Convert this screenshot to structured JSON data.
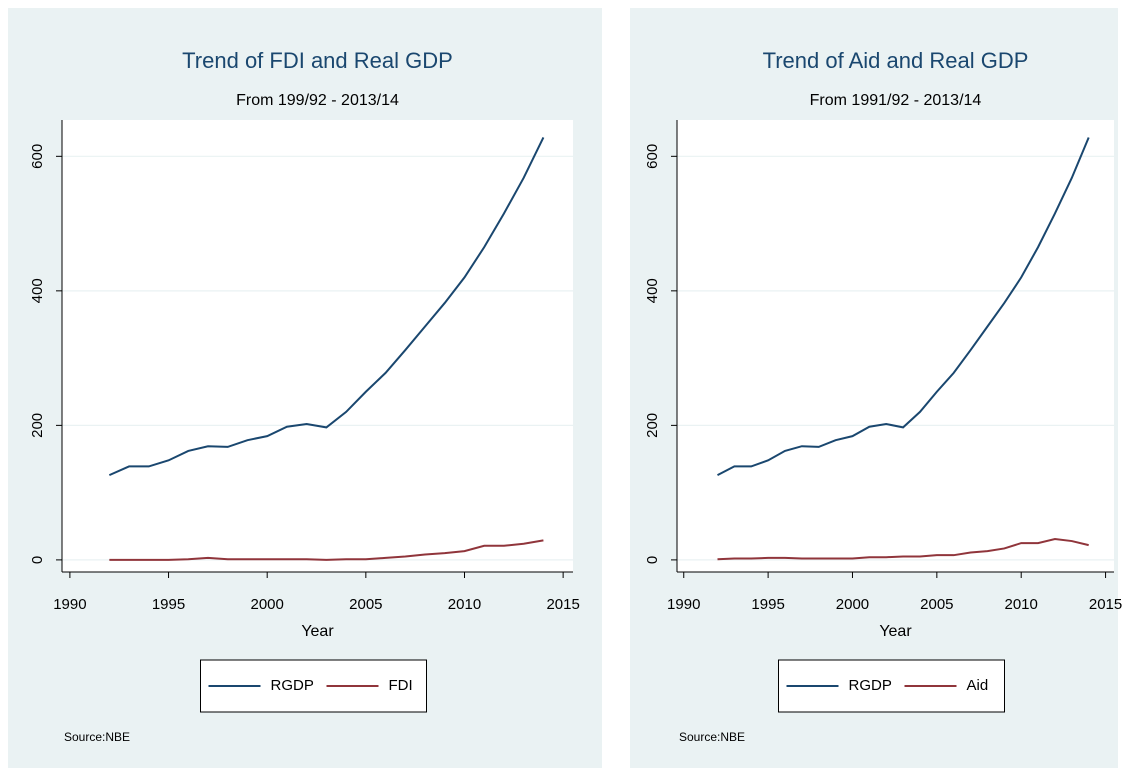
{
  "chart_data": [
    {
      "type": "line",
      "title": "Trend of FDI and Real GDP",
      "subtitle": "From 199/92 - 2013/14",
      "x_label": "Year",
      "note": "Source:NBE",
      "x": [
        1992,
        1993,
        1994,
        1995,
        1996,
        1997,
        1998,
        1999,
        2000,
        2001,
        2002,
        2003,
        2004,
        2005,
        2006,
        2007,
        2008,
        2009,
        2010,
        2011,
        2012,
        2013,
        2014
      ],
      "series": [
        {
          "name": "RGDP",
          "color": "#1a476f",
          "values": [
            126,
            139,
            139,
            148,
            162,
            169,
            168,
            178,
            184,
            198,
            202,
            197,
            220,
            250,
            278,
            312,
            347,
            382,
            420,
            465,
            515,
            568,
            628
          ]
        },
        {
          "name": "FDI",
          "color": "#90353b",
          "values": [
            0,
            0,
            0,
            0,
            1,
            3,
            1,
            1,
            1,
            1,
            1,
            0,
            1,
            1,
            3,
            5,
            8,
            10,
            13,
            21,
            21,
            24,
            29
          ]
        }
      ],
      "xlim": [
        1989.6,
        2015.5
      ],
      "xticks": [
        1990,
        1995,
        2000,
        2005,
        2010,
        2015
      ],
      "ylim": [
        -18,
        654
      ],
      "yticks": [
        0,
        200,
        400,
        600
      ],
      "grid": true,
      "legend": "bottom"
    },
    {
      "type": "line",
      "title": "Trend of Aid and Real GDP",
      "subtitle": "From 1991/92 - 2013/14",
      "x_label": "Year",
      "note": "Source:NBE",
      "x": [
        1992,
        1993,
        1994,
        1995,
        1996,
        1997,
        1998,
        1999,
        2000,
        2001,
        2002,
        2003,
        2004,
        2005,
        2006,
        2007,
        2008,
        2009,
        2010,
        2011,
        2012,
        2013,
        2014
      ],
      "series": [
        {
          "name": "RGDP",
          "color": "#1a476f",
          "values": [
            126,
            139,
            139,
            148,
            162,
            169,
            168,
            178,
            184,
            198,
            202,
            197,
            220,
            250,
            278,
            312,
            347,
            382,
            420,
            465,
            515,
            568,
            628
          ]
        },
        {
          "name": "Aid",
          "color": "#90353b",
          "values": [
            1,
            2,
            2,
            3,
            3,
            2,
            2,
            2,
            2,
            4,
            4,
            5,
            5,
            7,
            7,
            11,
            13,
            17,
            25,
            25,
            31,
            28,
            22
          ]
        }
      ],
      "xlim": [
        1989.6,
        2015.5
      ],
      "xticks": [
        1990,
        1995,
        2000,
        2005,
        2010,
        2015
      ],
      "ylim": [
        -18,
        654
      ],
      "yticks": [
        0,
        200,
        400,
        600
      ],
      "grid": true,
      "legend": "bottom"
    }
  ]
}
